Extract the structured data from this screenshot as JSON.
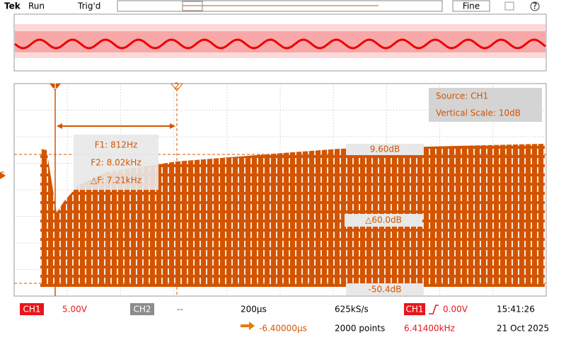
{
  "header": {
    "brand": "Tek",
    "state": "Run",
    "trigger_state": "Trig'd",
    "resolution": "Fine"
  },
  "display": {
    "source": "Source: CH1",
    "vertical_scale": "Vertical Scale: 10dB",
    "cursor_1_label": "1",
    "cursor_2_label": "2",
    "f_marker": "F",
    "f1": "F1: 812Hz",
    "f2": "F2: 8.02kHz",
    "delta_f": "△F: 7.21kHz",
    "level_top": "9.60dB",
    "delta_level": "△60.0dB",
    "level_bottom": "-50.4dB"
  },
  "status": {
    "ch1": "CH1",
    "ch1_scale": "5.00V",
    "ch2": "CH2",
    "ch2_scale": "--",
    "time_scale": "200µs",
    "sample_rate": "625kS/s",
    "trigger_source": "CH1",
    "trigger_level": "0.00V",
    "time": "15:41:26",
    "position": "-6.40000µs",
    "record_length": "2000 points",
    "frequency": "6.41400kHz",
    "date": "21 Oct 2025"
  }
}
